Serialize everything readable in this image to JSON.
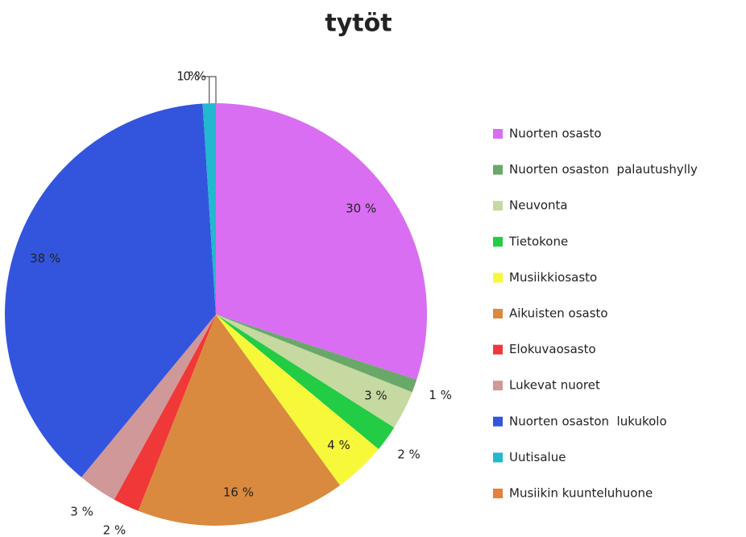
{
  "chart_data": {
    "type": "pie",
    "title": "tytöt",
    "categories": [
      "Nuorten osasto",
      "Nuorten osaston  palautushylly",
      "Neuvonta",
      "Tietokone",
      "Musiikkiosasto",
      "Aikuisten osasto",
      "Elokuvaosasto",
      "Lukevat nuoret",
      "Nuorten osaston  lukukolo",
      "Uutisalue",
      "Musiikin kuunteluhuone"
    ],
    "values": [
      30,
      1,
      3,
      2,
      4,
      16,
      2,
      3,
      38,
      1,
      0
    ],
    "value_labels": [
      "30 %",
      "1 %",
      "3 %",
      "2 %",
      "4 %",
      "16 %",
      "2 %",
      "3 %",
      "38 %",
      "1 %",
      "0 %"
    ],
    "colors": [
      "#d96ef2",
      "#6aa86a",
      "#c5d9a0",
      "#22cc44",
      "#f8f83a",
      "#d98a3e",
      "#f03838",
      "#d09898",
      "#3355dd",
      "#22b8d0",
      "#e6803a"
    ],
    "legend": "right"
  }
}
